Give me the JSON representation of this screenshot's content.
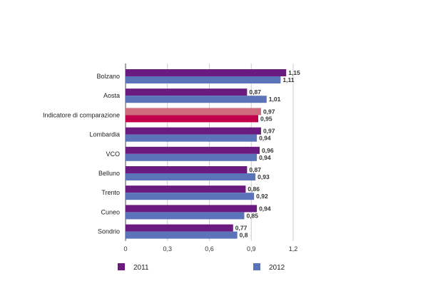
{
  "chart_data": {
    "type": "bar",
    "orientation": "horizontal",
    "categories": [
      "Bolzano",
      "Aosta",
      "Indicatore di comparazione",
      "Lombardia",
      "VCO",
      "Belluno",
      "Trento",
      "Cuneo",
      "Sondrio"
    ],
    "series": [
      {
        "name": "2011",
        "color": "#6b1a7f",
        "values": [
          1.15,
          0.87,
          0.97,
          0.97,
          0.96,
          0.87,
          0.86,
          0.94,
          0.77
        ],
        "value_labels": [
          "1,15",
          "0,87",
          "0,97",
          "0,97",
          "0,96",
          "0,87",
          "0,86",
          "0,94",
          "0,77"
        ]
      },
      {
        "name": "2012",
        "color": "#5b74b9",
        "values": [
          1.11,
          1.01,
          0.95,
          0.94,
          0.94,
          0.93,
          0.92,
          0.85,
          0.8
        ],
        "value_labels": [
          "1,11",
          "1,01",
          "0,95",
          "0,94",
          "0,94",
          "0,93",
          "0,92",
          "0,85",
          "0,8"
        ]
      }
    ],
    "highlight": {
      "category": "Indicatore di comparazione",
      "colors": [
        "#cd6b7c",
        "#c2004b"
      ]
    },
    "xlim": [
      0,
      1.2
    ],
    "x_ticks": [
      0,
      0.3,
      0.6,
      0.9,
      1.2
    ],
    "x_tick_labels": [
      "0",
      "0,3",
      "0,6",
      "0,9",
      "1,2"
    ],
    "grid": true,
    "legend_position": "bottom"
  }
}
